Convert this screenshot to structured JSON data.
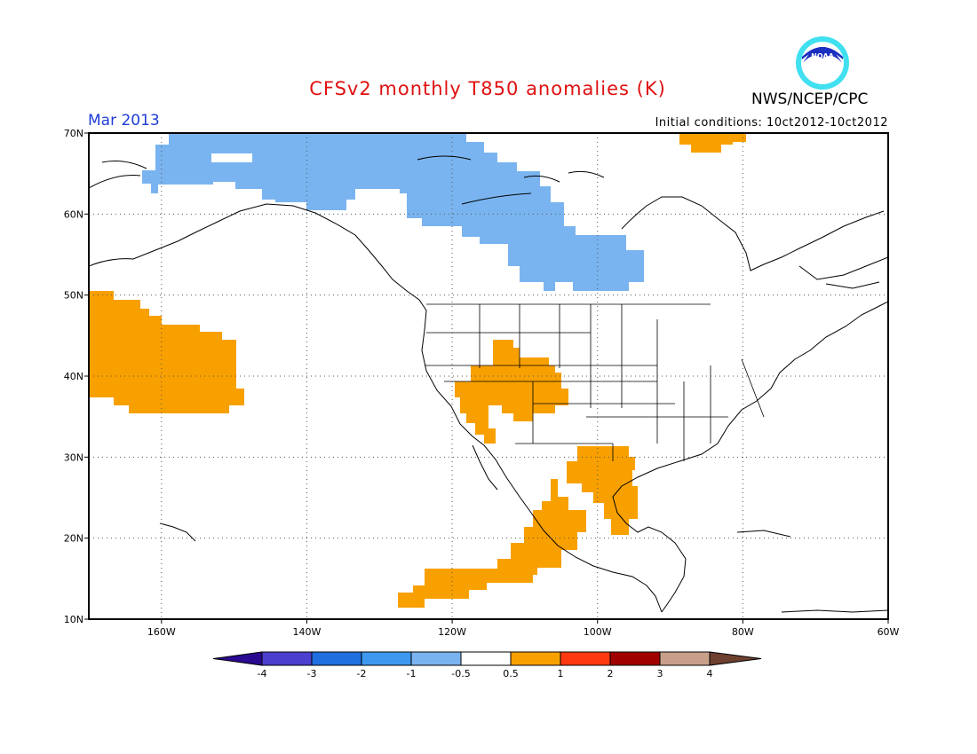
{
  "header": {
    "title": "CFSv2 monthly T850 anomalies (K)",
    "period": "Mar 2013",
    "organization": "NWS/NCEP/CPC",
    "logo_text": "NOAA",
    "initial_conditions": "Initial conditions: 10ct2012-10ct2012"
  },
  "map": {
    "lat_labels": [
      "70N",
      "60N",
      "50N",
      "40N",
      "30N",
      "20N",
      "10N"
    ],
    "lon_labels": [
      "160W",
      "140W",
      "120W",
      "100W",
      "80W",
      "60W"
    ],
    "lat_range": [
      10,
      70
    ],
    "lon_range": [
      -170,
      -60
    ],
    "gridlines": "dotted",
    "anomaly_regions": [
      {
        "name": "alaska-canada-cold",
        "category": "-1 to -0.5",
        "color": "#7ab4f0"
      },
      {
        "name": "north-pacific-warm",
        "category": "0.5 to 1",
        "color": "#f8a000"
      },
      {
        "name": "southwest-us-warm",
        "category": "0.5 to 1",
        "color": "#f8a000"
      },
      {
        "name": "texas-gulf-warm",
        "category": "0.5 to 1",
        "color": "#f8a000"
      },
      {
        "name": "mexico-pacific-warm",
        "category": "0.5 to 1",
        "color": "#f8a000"
      },
      {
        "name": "greenland-warm",
        "category": "0.5 to 1",
        "color": "#f8a000"
      }
    ]
  },
  "colorbar": {
    "labels": [
      "-4",
      "-3",
      "-2",
      "-1",
      "-0.5",
      "0.5",
      "1",
      "2",
      "3",
      "4"
    ],
    "colors": [
      "#2a0a90",
      "#4b3fcf",
      "#1f6fe0",
      "#3e98f0",
      "#7ab4f0",
      "#ffffff",
      "#f8a000",
      "#ff3a10",
      "#a00000",
      "#c8a08a",
      "#6e4030"
    ]
  }
}
